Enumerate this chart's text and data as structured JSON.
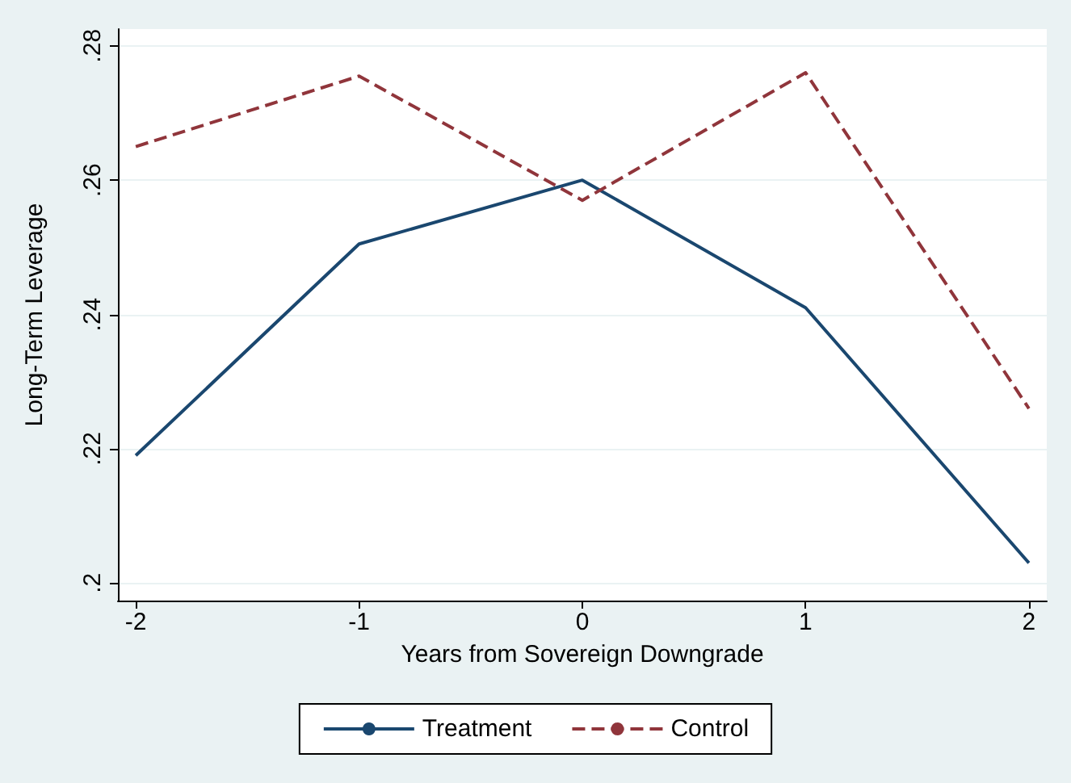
{
  "chart_data": {
    "type": "line",
    "xlabel": "Years from Sovereign Downgrade",
    "ylabel": "Long-Term Leverage",
    "x": [
      -2,
      -1,
      0,
      1,
      2
    ],
    "series": [
      {
        "name": "Treatment",
        "color": "#1a476f",
        "values": [
          0.219,
          0.2505,
          0.26,
          0.241,
          0.203
        ],
        "line_style": "solid"
      },
      {
        "name": "Control",
        "color": "#90353b",
        "values": [
          0.265,
          0.2755,
          0.257,
          0.276,
          0.226
        ],
        "line_style": "dashed"
      }
    ],
    "xlim": [
      -2.08,
      2.08
    ],
    "xticks": [
      -2,
      -1,
      0,
      1,
      2
    ],
    "ylim": [
      0.1974,
      0.2825
    ],
    "yticks": [
      {
        "value": 0.2,
        "label": ".2"
      },
      {
        "value": 0.22,
        "label": ".22"
      },
      {
        "value": 0.24,
        "label": ".24"
      },
      {
        "value": 0.26,
        "label": ".26"
      },
      {
        "value": 0.28,
        "label": ".28"
      }
    ],
    "grid": "y",
    "legend": "bottom",
    "marker": "none"
  }
}
